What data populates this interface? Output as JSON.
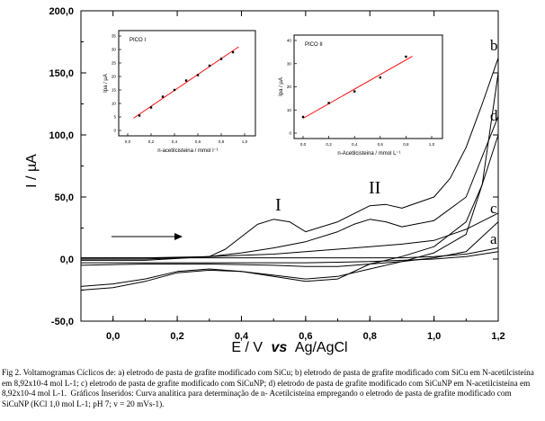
{
  "main_chart": {
    "type": "line",
    "xlabel_e": "E / V",
    "xlabel_vs": "vs",
    "xlabel_ref": "Ag/AgCl",
    "ylabel": "I / µA",
    "xlim": [
      -0.1,
      1.2
    ],
    "ylim": [
      -50.0,
      200.0
    ],
    "x_ticks": [
      "0,0",
      "0,2",
      "0,4",
      "0,6",
      "0,8",
      "1,0",
      "1,2"
    ],
    "y_ticks": [
      "-50,0",
      "0,0",
      "50,0",
      "100,0",
      "150,0",
      "200,0"
    ],
    "peak_label_1": "I",
    "peak_label_2": "II",
    "curve_labels": [
      "a",
      "b",
      "c",
      "d"
    ]
  },
  "chart_data": [
    {
      "type": "line",
      "title": "",
      "xlabel": "E / V vs Ag/AgCl",
      "ylabel": "I / µA",
      "xlim": [
        -0.1,
        1.2
      ],
      "ylim": [
        -50,
        200
      ],
      "series": [
        {
          "name": "a",
          "x": [
            -0.1,
            0.1,
            0.3,
            0.5,
            0.7,
            0.9,
            1.0,
            1.1,
            1.2
          ],
          "y": [
            1,
            1,
            1,
            1,
            1,
            1,
            2,
            4,
            9
          ]
        },
        {
          "name": "b",
          "x": [
            -0.1,
            0.1,
            0.3,
            0.35,
            0.45,
            0.5,
            0.55,
            0.6,
            0.7,
            0.8,
            0.85,
            0.9,
            1.0,
            1.05,
            1.1,
            1.15,
            1.2
          ],
          "y": [
            -1,
            -1,
            2,
            8,
            28,
            32,
            30,
            22,
            30,
            43,
            44,
            41,
            50,
            65,
            90,
            125,
            162
          ]
        },
        {
          "name": "c",
          "x": [
            -0.1,
            0.1,
            0.3,
            0.5,
            0.7,
            0.8,
            0.9,
            1.0,
            1.1,
            1.2
          ],
          "y": [
            1,
            1,
            2,
            4,
            8,
            10,
            12,
            15,
            24,
            37
          ]
        },
        {
          "name": "d",
          "x": [
            -0.1,
            0.1,
            0.3,
            0.4,
            0.5,
            0.6,
            0.7,
            0.75,
            0.8,
            0.85,
            0.9,
            1.0,
            1.1,
            1.2
          ],
          "y": [
            0,
            0,
            2,
            5,
            9,
            14,
            22,
            28,
            32,
            30,
            26,
            31,
            50,
            115
          ]
        }
      ]
    },
    {
      "type": "scatter",
      "title": "PICO I",
      "xlabel": "n-acetilcisteina / mmol l⁻¹",
      "ylabel": "Ipa / µA",
      "xlim": [
        0.0,
        1.0
      ],
      "ylim": [
        0,
        35
      ],
      "x_ticks": [
        "0,0",
        "0,2",
        "0,4",
        "0,6",
        "0,8",
        "1,0"
      ],
      "y_ticks": [
        "0",
        "5",
        "10",
        "15",
        "20",
        "25",
        "30",
        "35"
      ],
      "series": [
        {
          "name": "",
          "x": [
            0.1,
            0.2,
            0.3,
            0.4,
            0.5,
            0.6,
            0.7,
            0.8,
            0.9
          ],
          "y": [
            5.5,
            8.5,
            12.5,
            15,
            18.5,
            20.5,
            24,
            26.5,
            29
          ]
        }
      ]
    },
    {
      "type": "scatter",
      "title": "PICO II",
      "xlabel": "n-Acetilcisteina / mmol L⁻¹",
      "ylabel": "Ipa / µA",
      "xlim": [
        0.0,
        1.0
      ],
      "ylim": [
        0,
        40
      ],
      "x_ticks": [
        "0,0",
        "0,2",
        "0,4",
        "0,6",
        "0,8",
        "1,0"
      ],
      "y_ticks": [
        "0",
        "10",
        "20",
        "30",
        "40"
      ],
      "series": [
        {
          "name": "",
          "x": [
            0.0,
            0.2,
            0.4,
            0.6,
            0.8
          ],
          "y": [
            7,
            13,
            18,
            24,
            33
          ]
        }
      ]
    }
  ],
  "caption": "Fig 2. Voltamogramas Cíclicos de: a) eletrodo de pasta de grafite modificado com SiCu; b) eletrodo de pasta de grafite modificado com SiCu em N-acetilcisteína\nem 8,92x10-4 mol L-1; c) eletrodo de pasta de grafite modificado com SiCuNP; d) eletrodo de pasta de grafite modificado com SiCuNP em N-acetilcisteína em\n8,92x10-4 mol L-1.  Gráficos Inseridos: Curva analítica para determinação de n- Acetilcisteína empregando o eletrodo de pasta de grafite modificado com\nSiCuNP (KCl 1,0 mol L-1; pH 7; v = 20 mVs-1).",
  "colors": {
    "line": "#000000",
    "fit": "#ff0000",
    "points": "#000000"
  }
}
